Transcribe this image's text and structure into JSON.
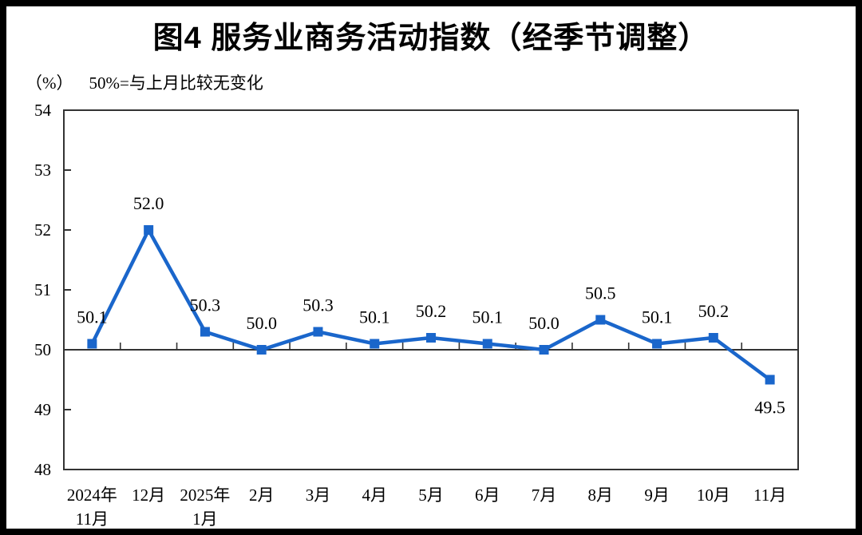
{
  "chart_data": {
    "type": "line",
    "title": "图4 服务业商务活动指数（经季节调整）",
    "unit": "（%）",
    "note": "50%=与上月比较无变化",
    "categories": [
      "2024年11月",
      "12月",
      "2025年1月",
      "2月",
      "3月",
      "4月",
      "5月",
      "6月",
      "7月",
      "8月",
      "9月",
      "10月",
      "11月"
    ],
    "category_label_lines": [
      [
        "2024年",
        "11月"
      ],
      [
        "12月"
      ],
      [
        "2025年",
        "1月"
      ],
      [
        "2月"
      ],
      [
        "3月"
      ],
      [
        "4月"
      ],
      [
        "5月"
      ],
      [
        "6月"
      ],
      [
        "7月"
      ],
      [
        "8月"
      ],
      [
        "9月"
      ],
      [
        "10月"
      ],
      [
        "11月"
      ]
    ],
    "values": [
      50.1,
      52.0,
      50.3,
      50.0,
      50.3,
      50.1,
      50.2,
      50.1,
      50.0,
      50.5,
      50.1,
      50.2,
      49.5
    ],
    "data_labels": [
      "50.1",
      "52.0",
      "50.3",
      "50.0",
      "50.3",
      "50.1",
      "50.2",
      "50.1",
      "50.0",
      "50.5",
      "50.1",
      "50.2",
      "49.5"
    ],
    "ylim": [
      48,
      54
    ],
    "y_ticks": [
      48,
      49,
      50,
      51,
      52,
      53,
      54
    ],
    "reference_value": 50,
    "grid": false,
    "legend": null,
    "marker": "square",
    "line_color": "#1A66CB",
    "axis_color": "#333333",
    "text_color": "#000000"
  }
}
